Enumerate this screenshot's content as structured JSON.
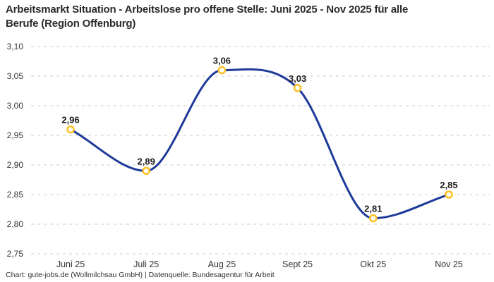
{
  "header": {
    "title_line1": "Arbeitsmarkt Situation - Arbeitslose pro offene Stelle: Juni 2025 - Nov 2025 für alle",
    "title_line2": "Berufe (Region Offenburg)"
  },
  "footer": {
    "credit": "Chart: gute-jobs.de (Wollmilchsau GmbH) | Datenquelle: Bundesagentur für Arbeit"
  },
  "chart_data": {
    "type": "line",
    "title": "Arbeitsmarkt Situation - Arbeitslose pro offene Stelle: Juni 2025 - Nov 2025 für alle Berufe (Region Offenburg)",
    "categories": [
      "Juni 25",
      "Juli 25",
      "Aug 25",
      "Sept 25",
      "Okt 25",
      "Nov 25"
    ],
    "values": [
      2.96,
      2.89,
      3.06,
      3.03,
      2.81,
      2.85
    ],
    "point_labels": [
      "2,96",
      "2,89",
      "3,06",
      "3,03",
      "2,81",
      "2,85"
    ],
    "ylim": [
      2.75,
      3.1
    ],
    "ytick_step": 0.05,
    "ytick_labels": [
      "3,10",
      "3,05",
      "3,00",
      "2,95",
      "2,90",
      "2,85",
      "2,80",
      "2,75"
    ],
    "grid_style": "dashed",
    "legend": "none",
    "colors": {
      "line": "#1e3a98",
      "marker_ring": "#fcc225",
      "marker_fill": "#ffffff",
      "grid": "#cccccc",
      "axis_text": "#333333",
      "point_label_text": "#1b1b1b"
    }
  }
}
